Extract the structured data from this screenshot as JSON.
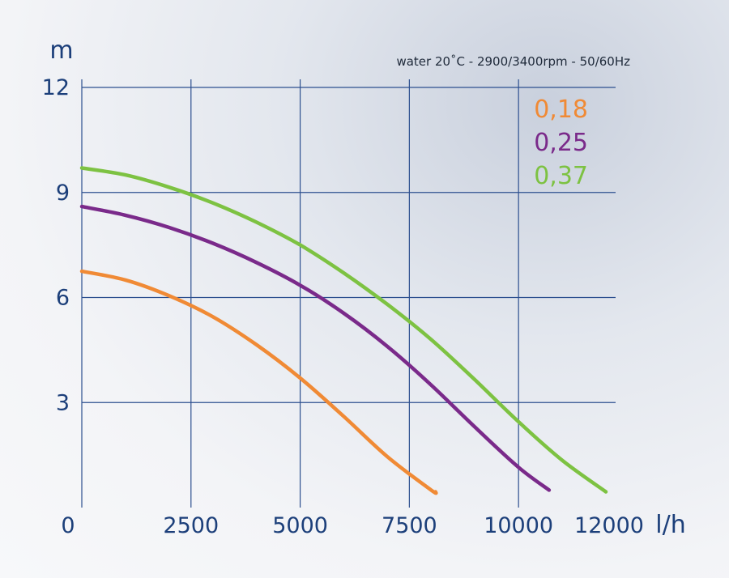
{
  "chart_data": {
    "type": "line",
    "subtitle": "water 20˚C - 2900/3400rpm - 50/60Hz",
    "ylabel": "m",
    "xlabel": "l/h",
    "xlim": [
      0,
      12000
    ],
    "ylim": [
      0,
      12
    ],
    "x_ticks": [
      {
        "value": 0,
        "label": "0"
      },
      {
        "value": 2500,
        "label": "2500"
      },
      {
        "value": 5000,
        "label": "5000"
      },
      {
        "value": 7500,
        "label": "7500"
      },
      {
        "value": 10000,
        "label": "10000"
      },
      {
        "value": 12000,
        "label": "12000"
      }
    ],
    "y_ticks": [
      {
        "value": 3,
        "label": "3"
      },
      {
        "value": 6,
        "label": "6"
      },
      {
        "value": 9,
        "label": "9"
      },
      {
        "value": 12,
        "label": "12"
      }
    ],
    "grid": true,
    "legend_position": "top-right",
    "series": [
      {
        "name": "0,18",
        "color": "#f08a35",
        "x": [
          0,
          1000,
          2000,
          3000,
          4000,
          5000,
          6000,
          7000,
          8000,
          8100
        ],
        "y": [
          6.75,
          6.5,
          6.05,
          5.45,
          4.65,
          3.7,
          2.6,
          1.45,
          0.5,
          0.45
        ]
      },
      {
        "name": "0,25",
        "color": "#7a2a8a",
        "x": [
          0,
          1000,
          2000,
          3000,
          4000,
          5000,
          6000,
          7000,
          8000,
          9000,
          10000,
          10700
        ],
        "y": [
          8.6,
          8.35,
          8.0,
          7.55,
          7.0,
          6.35,
          5.55,
          4.6,
          3.5,
          2.3,
          1.15,
          0.5
        ]
      },
      {
        "name": "0,37",
        "color": "#7dc242",
        "x": [
          0,
          1000,
          2000,
          3000,
          4000,
          5000,
          6000,
          7000,
          8000,
          9000,
          10000,
          11000,
          12000
        ],
        "y": [
          9.7,
          9.5,
          9.15,
          8.7,
          8.15,
          7.5,
          6.7,
          5.8,
          4.8,
          3.65,
          2.45,
          1.35,
          0.45
        ]
      }
    ]
  }
}
